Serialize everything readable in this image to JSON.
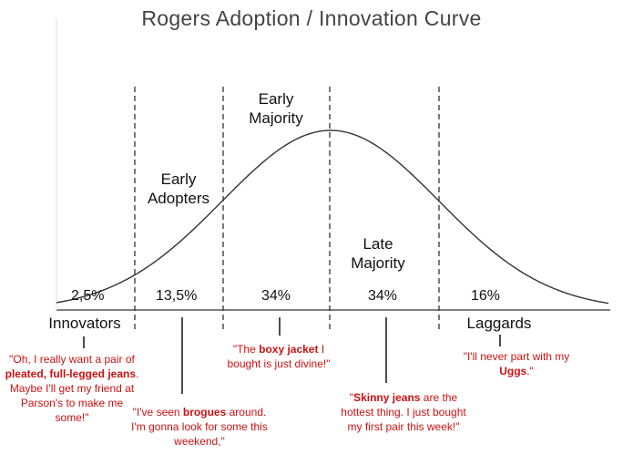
{
  "title": "Rogers Adoption / Innovation Curve",
  "segments": [
    {
      "label": "Innovators",
      "percent": "2,5%"
    },
    {
      "label": "Early Adopters",
      "percent": "13,5%"
    },
    {
      "label": "Early Majority",
      "percent": "34%"
    },
    {
      "label": "Late Majority",
      "percent": "34%"
    },
    {
      "label": "Laggards",
      "percent": "16%"
    }
  ],
  "quotes": {
    "innovators": {
      "p1": "\"Oh, I really want a pair of ",
      "b1": "pleated, full-legged jeans",
      "p2": ". Maybe I'll get my friend at Parson's to make me some!\""
    },
    "early_adopters": {
      "p1": "\"I've seen ",
      "b1": "brogues",
      "p2": " around. I'm gonna look for some this weekend,\""
    },
    "early_majority": {
      "p1": "\"The ",
      "b1": "boxy jacket",
      "p2": " I bought is just divine!\""
    },
    "late_majority": {
      "p1": "\"",
      "b1": "Skinny jeans",
      "p2": " are the hottest thing. I just bought my first pair this week!\""
    },
    "laggards": {
      "p1": "\"I'll never part with my ",
      "b1": "Uggs",
      "p2": ".\""
    }
  },
  "colors": {
    "curve": "#333333",
    "text": "#111111",
    "quote": "#cc1111",
    "title": "#444444"
  }
}
